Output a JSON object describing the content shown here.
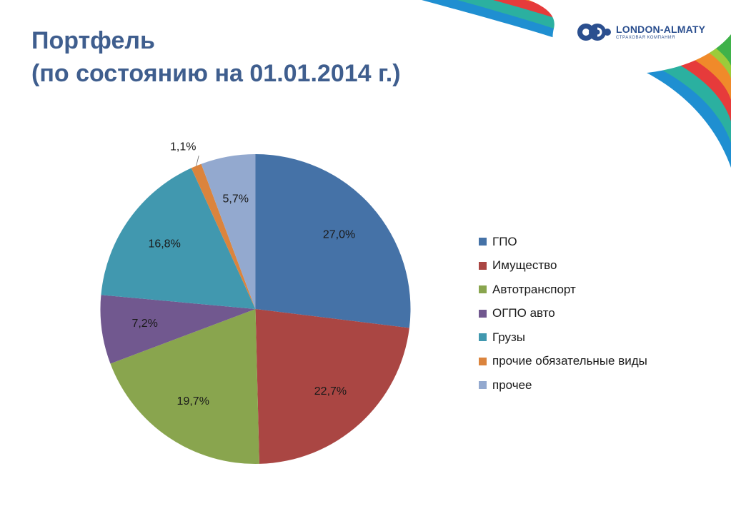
{
  "header": {
    "title_line1": "Портфель",
    "title_line2": "(по состоянию на 01.01.2014 г.)"
  },
  "logo": {
    "name": "LONDON-ALMATY",
    "subtitle": "СТРАХОВАЯ КОМПАНИЯ",
    "color": "#2b4f8f"
  },
  "chart_data": {
    "type": "pie",
    "series": [
      {
        "name": "ГПО",
        "value": 27.0,
        "label": "27,0%",
        "color": "#4572a7"
      },
      {
        "name": "Имущество",
        "value": 22.7,
        "label": "22,7%",
        "color": "#aa4643"
      },
      {
        "name": "Автотранспорт",
        "value": 19.7,
        "label": "19,7%",
        "color": "#89a54e"
      },
      {
        "name": "ОГПО авто",
        "value": 7.2,
        "label": "7,2%",
        "color": "#71588f"
      },
      {
        "name": "Грузы",
        "value": 16.8,
        "label": "16,8%",
        "color": "#4198af"
      },
      {
        "name": "прочие обязательные виды",
        "value": 1.1,
        "label": "1,1%",
        "color": "#db843d"
      },
      {
        "name": "прочее",
        "value": 5.7,
        "label": "5,7%",
        "color": "#93a9cf"
      }
    ],
    "legend_position": "right"
  }
}
